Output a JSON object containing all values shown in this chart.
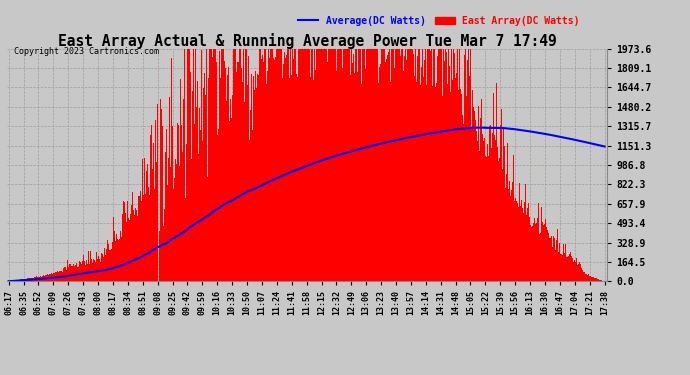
{
  "title": "East Array Actual & Running Average Power Tue Mar 7 17:49",
  "copyright": "Copyright 2023 Cartronics.com",
  "legend_avg": "Average(DC Watts)",
  "legend_east": "East Array(DC Watts)",
  "y_ticks": [
    0.0,
    164.5,
    328.9,
    493.4,
    657.9,
    822.3,
    986.8,
    1151.3,
    1315.7,
    1480.2,
    1644.7,
    1809.1,
    1973.6
  ],
  "y_max": 1973.6,
  "x_labels": [
    "06:17",
    "06:35",
    "06:52",
    "07:09",
    "07:26",
    "07:43",
    "08:00",
    "08:17",
    "08:34",
    "08:51",
    "09:08",
    "09:25",
    "09:42",
    "09:59",
    "10:16",
    "10:33",
    "10:50",
    "11:07",
    "11:24",
    "11:41",
    "11:58",
    "12:15",
    "12:32",
    "12:49",
    "13:06",
    "13:23",
    "13:40",
    "13:57",
    "14:14",
    "14:31",
    "14:48",
    "15:05",
    "15:22",
    "15:39",
    "15:56",
    "16:13",
    "16:30",
    "16:47",
    "17:04",
    "17:21",
    "17:38"
  ],
  "bg_color": "#c8c8c8",
  "plot_bg_color": "#c8c8c8",
  "bar_color": "#ff0000",
  "avg_line_color": "#0000ff",
  "grid_color": "#999999",
  "title_color": "#000000",
  "copyright_color": "#000000"
}
